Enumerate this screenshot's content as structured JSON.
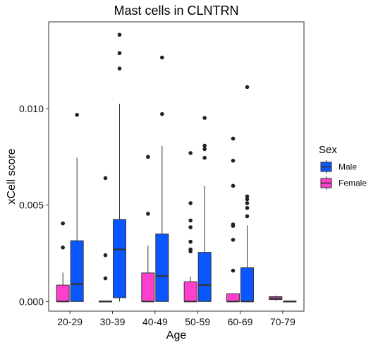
{
  "chart_data": {
    "type": "box",
    "title": "Mast cells in CLNTRN",
    "xlabel": "Age",
    "ylabel": "xCell score",
    "categories": [
      "20-29",
      "30-39",
      "40-49",
      "50-59",
      "60-69",
      "70-79"
    ],
    "ylim": [
      -0.0005,
      0.0145
    ],
    "yticks": [
      0.0,
      0.005,
      0.01
    ],
    "ytick_labels": [
      "0.000",
      "0.005",
      "0.010"
    ],
    "grid": false,
    "legend": {
      "title": "Sex",
      "placement": "right"
    },
    "series": [
      {
        "name": "Male",
        "color": "#0a56ff",
        "boxes": [
          {
            "category": "20-29",
            "min": 0.0,
            "q1": 0.0,
            "median": 0.0009,
            "q3": 0.00315,
            "max": 0.00745,
            "outliers": [
              0.00968
            ]
          },
          {
            "category": "30-39",
            "min": 0.0,
            "q1": 0.0002,
            "median": 0.0027,
            "q3": 0.00425,
            "max": 0.01025,
            "outliers": [
              0.01208,
              0.01288,
              0.01383
            ]
          },
          {
            "category": "40-49",
            "min": 0.0,
            "q1": 0.0,
            "median": 0.00132,
            "q3": 0.0035,
            "max": 0.00808,
            "outliers": [
              0.00972,
              0.01265
            ]
          },
          {
            "category": "50-59",
            "min": 0.0,
            "q1": 0.0,
            "median": 0.00085,
            "q3": 0.00255,
            "max": 0.006,
            "outliers": [
              0.00745,
              0.0079,
              0.00808,
              0.00952
            ]
          },
          {
            "category": "60-69",
            "min": 0.0,
            "q1": 0.0,
            "median": 0.0,
            "q3": 0.00175,
            "max": 0.00395,
            "outliers": [
              0.00442,
              0.00485,
              0.0051,
              0.0053,
              0.00545,
              0.01112
            ]
          },
          {
            "category": "70-79",
            "min": 0.0,
            "q1": 0.0,
            "median": 0.0,
            "q3": 0.0,
            "max": 0.0,
            "outliers": []
          }
        ]
      },
      {
        "name": "Female",
        "color": "#ff3fcd",
        "boxes": [
          {
            "category": "20-29",
            "min": 0.0,
            "q1": 0.0,
            "median": 0.0,
            "q3": 0.00085,
            "max": 0.0015,
            "outliers": [
              0.0028,
              0.00405
            ]
          },
          {
            "category": "30-39",
            "min": 0.0,
            "q1": 0.0,
            "median": 0.0,
            "q3": 0.0,
            "max": 0.0,
            "outliers": [
              0.0012,
              0.0024,
              0.0064
            ]
          },
          {
            "category": "40-49",
            "min": 0.0,
            "q1": 0.0,
            "median": 0.0,
            "q3": 0.00148,
            "max": 0.0029,
            "outliers": [
              0.00455,
              0.0075
            ]
          },
          {
            "category": "50-59",
            "min": 0.0,
            "q1": 0.0,
            "median": 0.0,
            "q3": 0.00102,
            "max": 0.00128,
            "outliers": [
              0.0026,
              0.0027,
              0.0031,
              0.00385,
              0.0042,
              0.0051,
              0.0077
            ]
          },
          {
            "category": "60-69",
            "min": 0.0,
            "q1": 0.0,
            "median": 0.0,
            "q3": 0.0004,
            "max": 0.0004,
            "outliers": [
              0.0016,
              0.0032,
              0.00392,
              0.004,
              0.006,
              0.0073,
              0.00845
            ]
          },
          {
            "category": "70-79",
            "min": 5e-05,
            "q1": 0.0001,
            "median": 0.00017,
            "q3": 0.00025,
            "max": 0.0003,
            "outliers": []
          }
        ]
      }
    ]
  }
}
